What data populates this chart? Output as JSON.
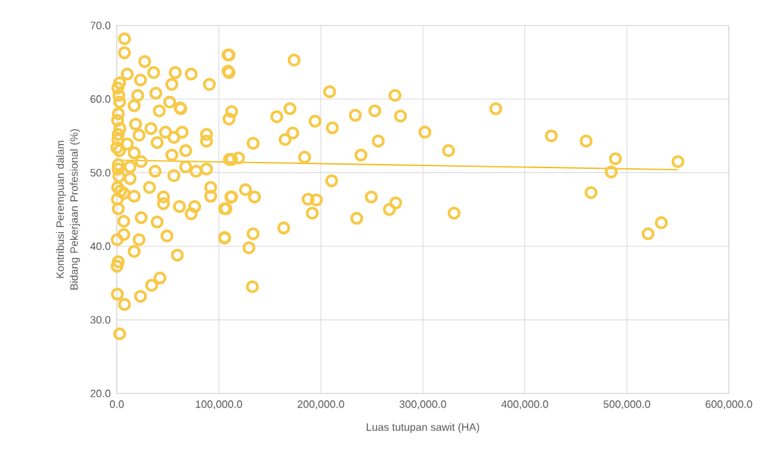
{
  "chart_data": {
    "type": "scatter",
    "xlabel": "Luas tutupan sawit (HA)",
    "ylabel": "Kontribusi Perempuan dalam Bidang Pekerjaan Profesional (%)",
    "xlim": [
      0,
      600000
    ],
    "ylim": [
      20,
      70
    ],
    "xticks": [
      {
        "value": 0,
        "label": "0.0"
      },
      {
        "value": 100000,
        "label": "100,000.0"
      },
      {
        "value": 200000,
        "label": "200,000.0"
      },
      {
        "value": 300000,
        "label": "300,000.0"
      },
      {
        "value": 400000,
        "label": "400,000.0"
      },
      {
        "value": 500000,
        "label": "500,000.0"
      },
      {
        "value": 600000,
        "label": "600,000.0"
      }
    ],
    "yticks": [
      {
        "value": 20,
        "label": "20.0"
      },
      {
        "value": 30,
        "label": "30.0"
      },
      {
        "value": 40,
        "label": "40.0"
      },
      {
        "value": 50,
        "label": "50.0"
      },
      {
        "value": 60,
        "label": "60.0"
      },
      {
        "value": 70,
        "label": "70.0"
      }
    ],
    "grid": true,
    "series": [
      {
        "marker": "circle",
        "color": "#f7c948",
        "x": [
          550100,
          488800,
          484700,
          460100,
          426000,
          464900,
          520800,
          533800,
          371500,
          173800,
          208600,
          272700,
          156800,
          169700,
          194300,
          211300,
          233800,
          252900,
          278100,
          302000,
          325200,
          165000,
          172500,
          133600,
          184100,
          239300,
          256300,
          119300,
          112500,
          210600,
          126100,
          135000,
          112500,
          187500,
          195700,
          191600,
          249500,
          273400,
          267200,
          235200,
          330600,
          107000,
          163600,
          133600,
          105700,
          129500,
          132900,
          110000,
          110000,
          112500,
          110000,
          7500,
          7500,
          27300,
          10200,
          36100,
          57300,
          72900,
          23200,
          53900,
          90700,
          2700,
          109100,
          109100,
          20500,
          38200,
          2700,
          51800,
          62000,
          41600,
          17000,
          700,
          18400,
          33400,
          87900,
          87900,
          55900,
          47700,
          39500,
          67500,
          21800,
          1400,
          0,
          17000,
          10200,
          53900,
          1400,
          13000,
          23900,
          37500,
          55900,
          67500,
          77700,
          87900,
          110400,
          13000,
          32000,
          6800,
          17000,
          500,
          45700,
          45700,
          61400,
          76300,
          72900,
          92000,
          92000,
          111800,
          105700,
          1400,
          23900,
          6800,
          39500,
          49100,
          21800,
          6800,
          300,
          105700,
          17000,
          59300,
          1400,
          200,
          42300,
          34100,
          23200,
          500,
          7500,
          2700,
          62700,
          64000,
          1000,
          2000,
          1500,
          3000,
          1000,
          2500,
          1200,
          2000,
          800,
          3500
        ],
        "values": [
          51.5,
          51.9,
          50.1,
          54.3,
          55.0,
          47.3,
          41.7,
          43.2,
          58.7,
          65.3,
          61.0,
          60.5,
          57.6,
          58.7,
          57.0,
          56.1,
          57.8,
          58.4,
          57.7,
          55.5,
          53.0,
          54.5,
          55.4,
          54.0,
          52.1,
          52.4,
          54.3,
          52.0,
          51.8,
          48.9,
          47.7,
          46.7,
          46.7,
          46.4,
          46.3,
          44.5,
          46.7,
          45.9,
          45.0,
          43.8,
          44.5,
          45.1,
          42.5,
          41.7,
          41.1,
          39.8,
          34.5,
          66.0,
          63.6,
          58.3,
          57.3,
          68.2,
          66.3,
          65.1,
          63.4,
          63.6,
          63.6,
          63.4,
          62.6,
          62.0,
          62.0,
          62.2,
          66.0,
          63.8,
          60.5,
          60.8,
          59.6,
          59.6,
          58.8,
          58.4,
          59.1,
          57.1,
          56.6,
          56.0,
          55.2,
          54.3,
          54.8,
          55.5,
          54.1,
          53.0,
          55.1,
          55.2,
          53.4,
          52.7,
          53.9,
          52.4,
          51.1,
          50.8,
          51.5,
          50.2,
          49.6,
          50.8,
          50.2,
          50.5,
          51.8,
          49.2,
          48.0,
          47.2,
          46.8,
          46.4,
          46.7,
          45.8,
          45.4,
          45.4,
          44.4,
          46.8,
          48.0,
          46.7,
          45.1,
          45.1,
          43.9,
          43.4,
          43.3,
          41.4,
          40.9,
          41.6,
          40.9,
          41.2,
          39.3,
          38.8,
          37.9,
          37.3,
          35.7,
          34.7,
          33.2,
          33.5,
          32.1,
          28.1,
          58.7,
          55.5,
          61.5,
          60.5,
          58.0,
          56.0,
          54.5,
          53.0,
          50.5,
          49.5,
          48.0,
          47.5
        ]
      },
      {
        "type": "line",
        "color": "#f2bd1b",
        "x": [
          0,
          550000
        ],
        "values": [
          51.7,
          50.4
        ]
      }
    ]
  }
}
